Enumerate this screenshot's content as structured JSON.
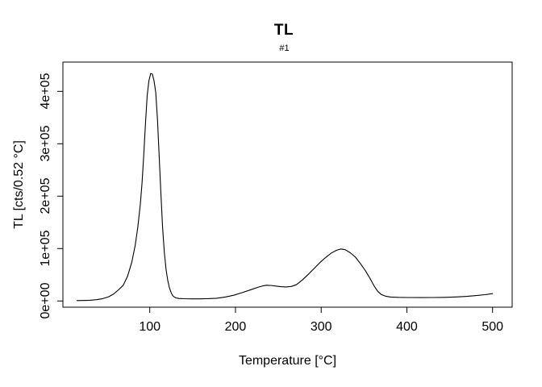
{
  "window": {
    "background": "#ffffff",
    "foreground": "#000000"
  },
  "chart_data": {
    "type": "line",
    "title": "TL",
    "subtitle": "#1",
    "xlabel": "Temperature [°C]",
    "ylabel": "TL [cts/0.52 °C]",
    "xlim": [
      13,
      507
    ],
    "ylim": [
      0,
      450000
    ],
    "grid": false,
    "legend": "none",
    "line_color": "#000000",
    "axis_color": "#000000",
    "x_ticks": [
      100,
      200,
      300,
      400,
      500
    ],
    "x_tick_labels": [
      "100",
      "200",
      "300",
      "400",
      "500"
    ],
    "y_ticks": [
      0,
      100000,
      200000,
      300000,
      400000
    ],
    "y_tick_labels": [
      "0e+00",
      "1e+05",
      "2e+05",
      "3e+05",
      "4e+05"
    ],
    "peaks_summary": [
      {
        "temperature_c": 100,
        "counts": 436000
      },
      {
        "temperature_c": 236,
        "counts": 30000
      },
      {
        "temperature_c": 323,
        "counts": 99200
      }
    ],
    "series": [
      {
        "name": "#1",
        "x": [
          15,
          22,
          30,
          38,
          45,
          52,
          58,
          64,
          69,
          74,
          79,
          83,
          86,
          89,
          91,
          93,
          95,
          97,
          99,
          101,
          103,
          105,
          107,
          109,
          111,
          113,
          115,
          117,
          119,
          121,
          123,
          125,
          127,
          130,
          134,
          140,
          148,
          158,
          168,
          178,
          188,
          198,
          208,
          218,
          226,
          232,
          236,
          241,
          247,
          253,
          259,
          265,
          271,
          278,
          285,
          292,
          299,
          306,
          312,
          318,
          323,
          328,
          334,
          340,
          346,
          352,
          357,
          362,
          366,
          370,
          375,
          381,
          390,
          402,
          416,
          430,
          444,
          458,
          470,
          481,
          491,
          500
        ],
        "y": [
          700,
          900,
          1400,
          2500,
          4500,
          8000,
          13500,
          22000,
          30000,
          47000,
          74000,
          106000,
          140000,
          185000,
          225000,
          280000,
          340000,
          392000,
          420000,
          434000,
          433000,
          420000,
          398000,
          345000,
          275000,
          205000,
          140000,
          92000,
          60000,
          39000,
          25000,
          15500,
          9500,
          6200,
          4800,
          4300,
          4000,
          4000,
          4400,
          5300,
          7500,
          11000,
          16000,
          21500,
          26000,
          28800,
          30000,
          29700,
          28400,
          27300,
          26800,
          27700,
          31000,
          40000,
          51000,
          62500,
          74000,
          84000,
          91500,
          96800,
          99200,
          97800,
          92000,
          83500,
          71000,
          57000,
          43000,
          28000,
          18500,
          12500,
          9200,
          7600,
          6900,
          6600,
          6500,
          6600,
          7000,
          7700,
          8800,
          10300,
          12000,
          14000
        ]
      }
    ]
  }
}
